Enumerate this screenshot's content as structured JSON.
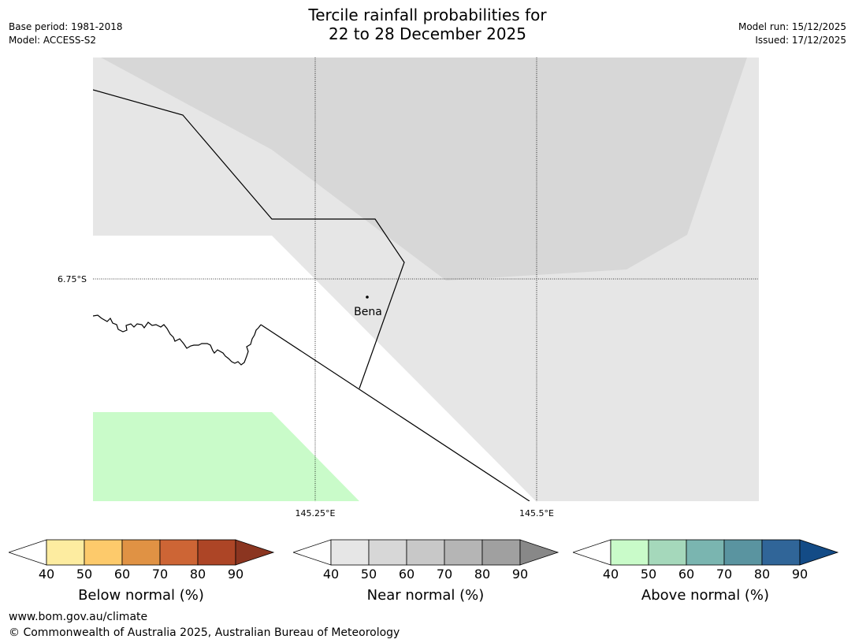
{
  "header": {
    "title_line1": "Tercile rainfall probabilities for",
    "title_line2": "22 to 28 December 2025",
    "base_period": "Base period: 1981-2018",
    "model": "Model: ACCESS-S2",
    "model_run": "Model run: 15/12/2025",
    "issued": "Issued: 17/12/2025"
  },
  "map": {
    "lat_label": "6.75°S",
    "lon_labels": [
      "145.25°E",
      "145.5°E"
    ],
    "place_name": "Bena",
    "colors": {
      "near_normal_40_50": "#e6e6e6",
      "near_normal_50_60": "#d7d7d7",
      "above_normal_40_50": "#c9fbc9",
      "background": "#ffffff"
    }
  },
  "legends": [
    {
      "label": "Below normal (%)",
      "ticks": [
        "40",
        "50",
        "60",
        "70",
        "80",
        "90"
      ],
      "colors": [
        "#ffffff",
        "#fdeca0",
        "#fdca6b",
        "#e09244",
        "#cd6535",
        "#ad4526",
        "#8b3520"
      ]
    },
    {
      "label": "Near normal (%)",
      "ticks": [
        "40",
        "50",
        "60",
        "70",
        "80",
        "90"
      ],
      "colors": [
        "#ffffff",
        "#e6e6e6",
        "#d7d7d7",
        "#c8c8c8",
        "#b5b5b5",
        "#a0a0a0",
        "#888888"
      ]
    },
    {
      "label": "Above normal (%)",
      "ticks": [
        "40",
        "50",
        "60",
        "70",
        "80",
        "90"
      ],
      "colors": [
        "#ffffff",
        "#c9fbc9",
        "#a5d8bb",
        "#7ab5b0",
        "#5a94a0",
        "#306598",
        "#134b86"
      ]
    }
  ],
  "footer": {
    "website": "www.bom.gov.au/climate",
    "copyright": "© Commonwealth of Australia 2025, Australian Bureau of Meteorology"
  }
}
